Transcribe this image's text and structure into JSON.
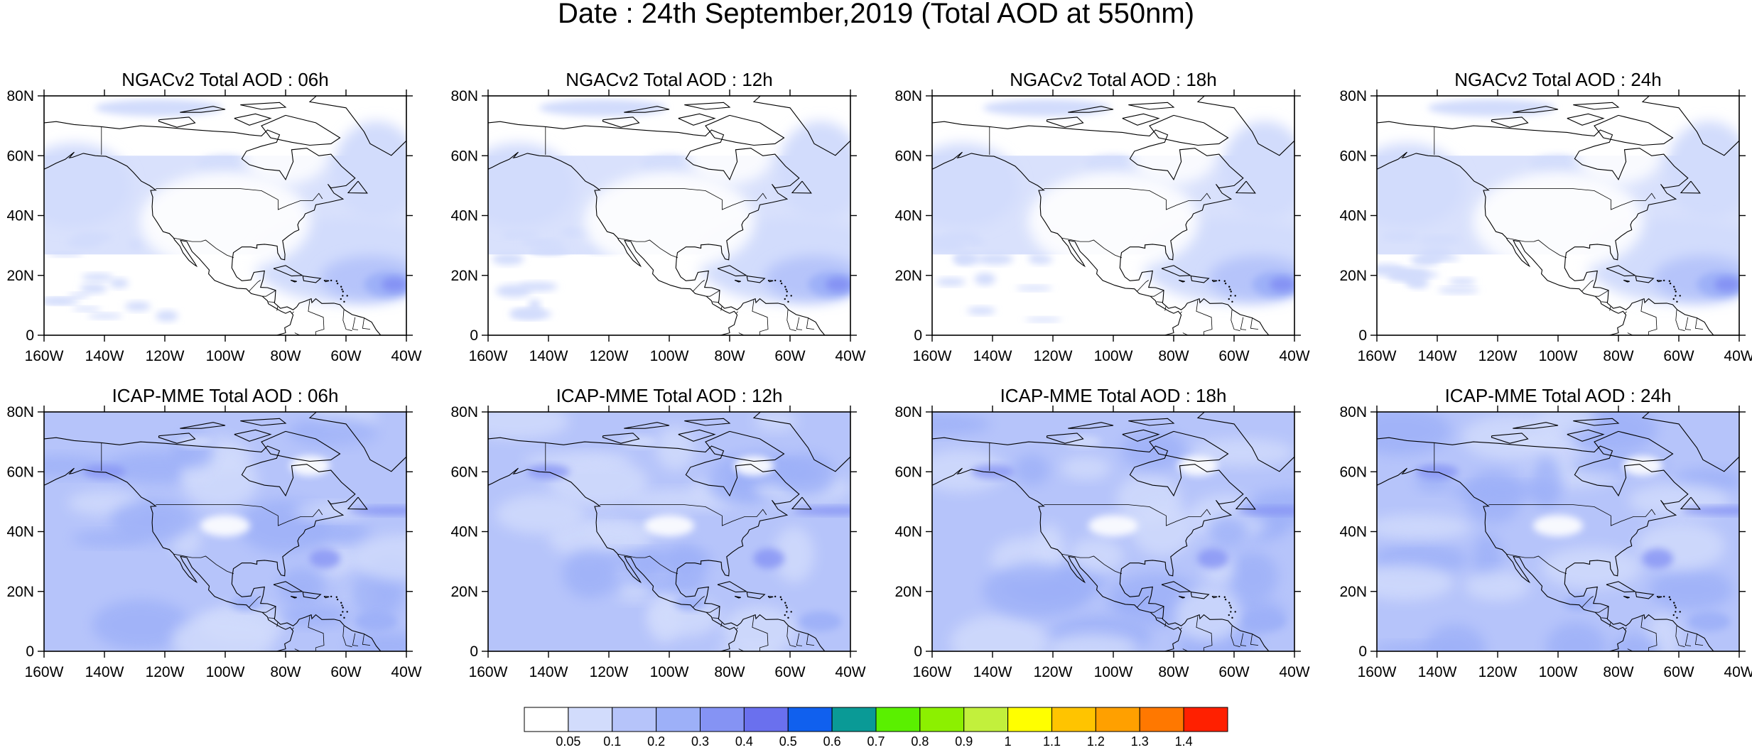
{
  "figure": {
    "title": "Date : 24th September,2019 (Total AOD at 550nm)"
  },
  "axes": {
    "lat_labels": [
      "0",
      "20N",
      "40N",
      "60N",
      "80N"
    ],
    "lon_labels": [
      "160W",
      "140W",
      "120W",
      "100W",
      "80W",
      "60W",
      "40W"
    ],
    "lat_range": [
      0,
      80
    ],
    "lon_range": [
      -160,
      -40
    ]
  },
  "panels": [
    {
      "id": "ngac-06",
      "title": "NGACv2 Total AOD : 06h",
      "model": "NGACv2",
      "hour": "06h"
    },
    {
      "id": "ngac-12",
      "title": "NGACv2 Total AOD : 12h",
      "model": "NGACv2",
      "hour": "12h"
    },
    {
      "id": "ngac-18",
      "title": "NGACv2 Total AOD : 18h",
      "model": "NGACv2",
      "hour": "18h"
    },
    {
      "id": "ngac-24",
      "title": "NGACv2 Total AOD : 24h",
      "model": "NGACv2",
      "hour": "24h"
    },
    {
      "id": "icap-06",
      "title": "ICAP-MME Total AOD : 06h",
      "model": "ICAP-MME",
      "hour": "06h"
    },
    {
      "id": "icap-12",
      "title": "ICAP-MME Total AOD : 12h",
      "model": "ICAP-MME",
      "hour": "12h"
    },
    {
      "id": "icap-18",
      "title": "ICAP-MME Total AOD : 18h",
      "model": "ICAP-MME",
      "hour": "18h"
    },
    {
      "id": "icap-24",
      "title": "ICAP-MME Total AOD : 24h",
      "model": "ICAP-MME",
      "hour": "24h"
    }
  ],
  "colorbar": {
    "colors": [
      "#ffffff",
      "#d2dcfc",
      "#b6c4fa",
      "#9db0f8",
      "#8593f4",
      "#6a70ee",
      "#1060ee",
      "#0a9a96",
      "#5af000",
      "#8cf000",
      "#c2f03c",
      "#ffff00",
      "#ffc400",
      "#ffa000",
      "#ff7800",
      "#ff2000"
    ],
    "labels": [
      "0.05",
      "0.1",
      "0.2",
      "0.3",
      "0.4",
      "0.5",
      "0.6",
      "0.7",
      "0.8",
      "0.9",
      "1",
      "1.1",
      "1.2",
      "1.3",
      "1.4"
    ]
  }
}
